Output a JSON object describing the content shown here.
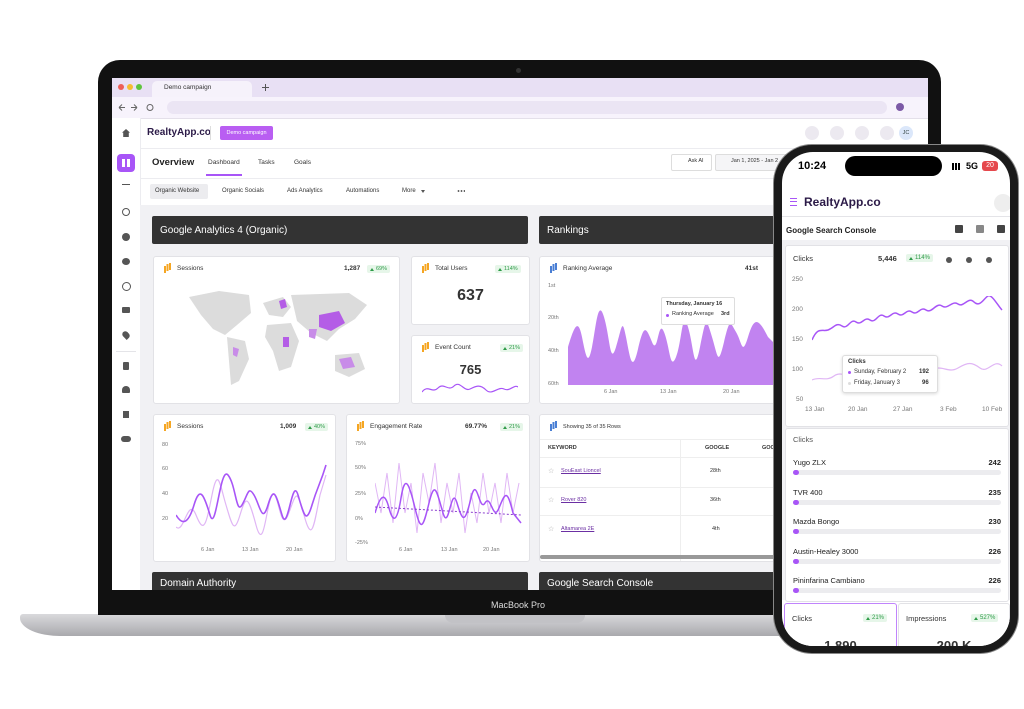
{
  "browser": {
    "tab": "Demo campaign"
  },
  "app": {
    "logo": "RealtyApp.co",
    "campaign_button": "Demo campaign",
    "avatar": "JC",
    "nav": {
      "title": "Overview",
      "tabs": [
        "Dashboard",
        "Tasks",
        "Goals"
      ],
      "ask_ai": "Ask AI",
      "date_range": "Jan 1, 2025 - Jan 2"
    },
    "subtabs": [
      "Organic Website",
      "Organic Socials",
      "Ads Analytics",
      "Automations",
      "More"
    ],
    "sections": [
      "Google Analytics 4 (Organic)",
      "Rankings",
      "Domain Authority",
      "Google Search Console"
    ],
    "cards": {
      "sessions_map": {
        "title": "Sessions",
        "value": "1,287",
        "change": "69%"
      },
      "total_users": {
        "title": "Total Users",
        "value": "637",
        "change": "114%"
      },
      "event_count": {
        "title": "Event Count",
        "value": "765",
        "change": "21%"
      },
      "ranking_average": {
        "title": "Ranking Average",
        "value": "41st",
        "tooltip": {
          "date": "Thursday, January 16",
          "label": "Ranking Average",
          "value": "3rd"
        },
        "yticks": [
          "1st",
          "20th",
          "40th",
          "60th"
        ],
        "xticks": [
          "6 Jan",
          "13 Jan",
          "20 Jan"
        ]
      },
      "sessions_chart": {
        "title": "Sessions",
        "value": "1,009",
        "change": "40%",
        "yticks": [
          "80",
          "60",
          "40",
          "20"
        ],
        "xticks": [
          "6 Jan",
          "13 Jan",
          "20 Jan"
        ]
      },
      "engagement_rate": {
        "title": "Engagement Rate",
        "value": "69.77%",
        "change": "21%",
        "yticks": [
          "75%",
          "50%",
          "25%",
          "0%",
          "-25%"
        ],
        "xticks": [
          "6 Jan",
          "13 Jan",
          "20 Jan"
        ]
      },
      "keyword_table": {
        "caption": "Showing 35 of 35 Rows",
        "headers": [
          "KEYWORD",
          "GOOGLE",
          "GOOGLE"
        ],
        "rows": [
          [
            "SouEast Lioncel",
            "28th"
          ],
          [
            "Rover 820",
            "36th"
          ],
          [
            "Altamarea 2E",
            "4th"
          ]
        ]
      }
    }
  },
  "device_label": "MacBook Pro",
  "phone": {
    "time": "10:24",
    "network": "5G",
    "battery": "20",
    "logo": "RealtyApp.co",
    "page_title": "Google Search Console",
    "clicks_card": {
      "title": "Clicks",
      "value": "5,446",
      "change": "114%",
      "yticks": [
        "250",
        "200",
        "150",
        "100",
        "50"
      ],
      "xticks": [
        "13 Jan",
        "20 Jan",
        "27 Jan",
        "3 Feb",
        "10 Feb"
      ],
      "tooltip": {
        "title": "Clicks",
        "rows": [
          {
            "label": "Sunday, February 2",
            "value": "192"
          },
          {
            "label": "Friday, January 3",
            "value": "96"
          }
        ]
      }
    },
    "clicks_list": {
      "title": "Clicks",
      "items": [
        {
          "name": "Yugo ZLX",
          "value": "242"
        },
        {
          "name": "TVR 400",
          "value": "235"
        },
        {
          "name": "Mazda Bongo",
          "value": "230"
        },
        {
          "name": "Austin-Healey 3000",
          "value": "226"
        },
        {
          "name": "Pininfarina Cambiano",
          "value": "226"
        }
      ]
    },
    "bottom_cards": [
      {
        "title": "Clicks",
        "change": "21%",
        "value": "1,890"
      },
      {
        "title": "Impressions",
        "change": "527%",
        "value": "200 K"
      }
    ]
  }
}
